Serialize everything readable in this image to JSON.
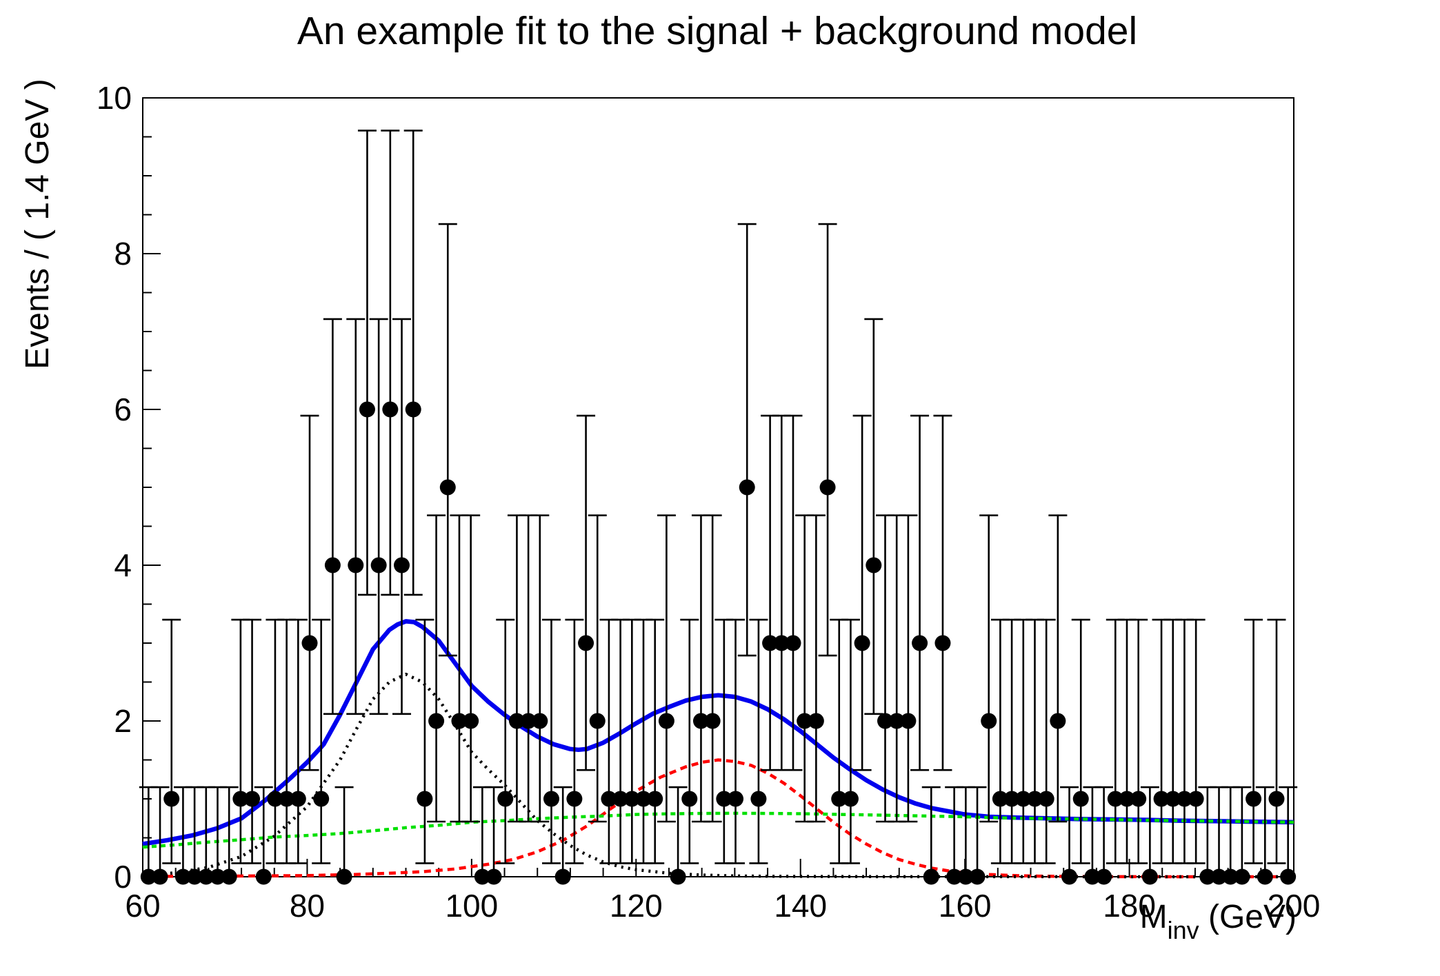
{
  "title": "An example fit to the signal + background model",
  "axes": {
    "x": {
      "title_main": "M",
      "title_sub": "inv",
      "title_rest": " (GeV)",
      "min": 60,
      "max": 200,
      "major_step": 20,
      "minor_step": 4,
      "tick_values": [
        60,
        80,
        100,
        120,
        140,
        160,
        180,
        200
      ],
      "tick_labels": [
        "60",
        "80",
        "100",
        "120",
        "140",
        "160",
        "180",
        "200"
      ]
    },
    "y": {
      "title": "Events / ( 1.4 GeV )",
      "min": 0,
      "max": 10,
      "major_step": 2,
      "minor_step": 0.5,
      "tick_values": [
        0,
        2,
        4,
        6,
        8,
        10
      ],
      "tick_labels": [
        "0",
        "2",
        "4",
        "6",
        "8",
        "10"
      ]
    }
  },
  "chart_data": {
    "type": "scatter",
    "title": "An example fit to the signal + background model",
    "xlabel": "M_inv (GeV)",
    "ylabel": "Events / ( 1.4 GeV )",
    "xlim": [
      60,
      200
    ],
    "ylim": [
      0,
      10
    ],
    "grid": false,
    "legend": "none",
    "bin_width_gev": 1.4,
    "marker_color": "#000000",
    "data_points": [
      [
        60.7,
        0
      ],
      [
        62.1,
        0
      ],
      [
        63.5,
        1
      ],
      [
        64.9,
        0
      ],
      [
        66.3,
        0
      ],
      [
        67.7,
        0
      ],
      [
        69.1,
        0
      ],
      [
        70.5,
        0
      ],
      [
        71.9,
        1
      ],
      [
        73.3,
        1
      ],
      [
        74.7,
        0
      ],
      [
        76.1,
        1
      ],
      [
        77.5,
        1
      ],
      [
        78.9,
        1
      ],
      [
        80.3,
        3
      ],
      [
        81.7,
        1
      ],
      [
        83.1,
        4
      ],
      [
        84.5,
        0
      ],
      [
        85.9,
        4
      ],
      [
        87.3,
        6
      ],
      [
        88.7,
        4
      ],
      [
        90.1,
        6
      ],
      [
        91.5,
        4
      ],
      [
        92.9,
        6
      ],
      [
        94.3,
        1
      ],
      [
        95.7,
        2
      ],
      [
        97.1,
        5
      ],
      [
        98.5,
        2
      ],
      [
        99.9,
        2
      ],
      [
        101.3,
        0
      ],
      [
        102.7,
        0
      ],
      [
        104.1,
        1
      ],
      [
        105.5,
        2
      ],
      [
        106.9,
        2
      ],
      [
        108.3,
        2
      ],
      [
        109.7,
        1
      ],
      [
        111.1,
        0
      ],
      [
        112.5,
        1
      ],
      [
        113.9,
        3
      ],
      [
        115.3,
        2
      ],
      [
        116.7,
        1
      ],
      [
        118.1,
        1
      ],
      [
        119.5,
        1
      ],
      [
        120.9,
        1
      ],
      [
        122.3,
        1
      ],
      [
        123.7,
        2
      ],
      [
        125.1,
        0
      ],
      [
        126.5,
        1
      ],
      [
        127.9,
        2
      ],
      [
        129.3,
        2
      ],
      [
        130.7,
        1
      ],
      [
        132.1,
        1
      ],
      [
        133.5,
        5
      ],
      [
        134.9,
        1
      ],
      [
        136.3,
        3
      ],
      [
        137.7,
        3
      ],
      [
        139.1,
        3
      ],
      [
        140.5,
        2
      ],
      [
        141.9,
        2
      ],
      [
        143.3,
        5
      ],
      [
        144.7,
        1
      ],
      [
        146.1,
        1
      ],
      [
        147.5,
        3
      ],
      [
        148.9,
        4
      ],
      [
        150.3,
        2
      ],
      [
        151.7,
        2
      ],
      [
        153.1,
        2
      ],
      [
        154.5,
        3
      ],
      [
        155.9,
        0
      ],
      [
        157.3,
        3
      ],
      [
        158.7,
        0
      ],
      [
        160.1,
        0
      ],
      [
        161.5,
        0
      ],
      [
        162.9,
        2
      ],
      [
        164.3,
        1
      ],
      [
        165.7,
        1
      ],
      [
        167.1,
        1
      ],
      [
        168.5,
        1
      ],
      [
        169.9,
        1
      ],
      [
        171.3,
        2
      ],
      [
        172.7,
        0
      ],
      [
        174.1,
        1
      ],
      [
        175.5,
        0
      ],
      [
        176.9,
        0
      ],
      [
        178.3,
        1
      ],
      [
        179.7,
        1
      ],
      [
        181.1,
        1
      ],
      [
        182.5,
        0
      ],
      [
        183.9,
        1
      ],
      [
        185.3,
        1
      ],
      [
        186.7,
        1
      ],
      [
        188.1,
        1
      ],
      [
        189.5,
        0
      ],
      [
        190.9,
        0
      ],
      [
        192.3,
        0
      ],
      [
        193.7,
        0
      ],
      [
        195.1,
        1
      ],
      [
        196.5,
        0
      ],
      [
        197.9,
        1
      ],
      [
        199.3,
        0
      ]
    ],
    "poisson_errors": {
      "0": [
        0,
        1.15
      ],
      "1": [
        0.173,
        3.3
      ],
      "2": [
        0.708,
        4.64
      ],
      "3": [
        1.37,
        5.92
      ],
      "4": [
        2.09,
        7.16
      ],
      "5": [
        2.84,
        8.38
      ],
      "6": [
        3.62,
        9.58
      ]
    },
    "curves": [
      {
        "name": "total-model-fit",
        "color": "#0000ee",
        "style": "solid",
        "width": 6.5,
        "dash": "",
        "points": [
          [
            60,
            0.42
          ],
          [
            63,
            0.47
          ],
          [
            66,
            0.53
          ],
          [
            69,
            0.62
          ],
          [
            72,
            0.75
          ],
          [
            75,
            0.99
          ],
          [
            78,
            1.27
          ],
          [
            80,
            1.47
          ],
          [
            82,
            1.7
          ],
          [
            84,
            2.08
          ],
          [
            86,
            2.5
          ],
          [
            88,
            2.92
          ],
          [
            90,
            3.17
          ],
          [
            91,
            3.24
          ],
          [
            92,
            3.28
          ],
          [
            93,
            3.27
          ],
          [
            94,
            3.21
          ],
          [
            96,
            3.03
          ],
          [
            98,
            2.74
          ],
          [
            100,
            2.45
          ],
          [
            102,
            2.25
          ],
          [
            104,
            2.08
          ],
          [
            106,
            1.93
          ],
          [
            108,
            1.8
          ],
          [
            110,
            1.7
          ],
          [
            112,
            1.64
          ],
          [
            113,
            1.63
          ],
          [
            114,
            1.64
          ],
          [
            116,
            1.72
          ],
          [
            118,
            1.84
          ],
          [
            120,
            1.97
          ],
          [
            122,
            2.09
          ],
          [
            124,
            2.18
          ],
          [
            126,
            2.26
          ],
          [
            128,
            2.31
          ],
          [
            130,
            2.33
          ],
          [
            132,
            2.31
          ],
          [
            134,
            2.25
          ],
          [
            136,
            2.15
          ],
          [
            138,
            2.02
          ],
          [
            140,
            1.87
          ],
          [
            142,
            1.7
          ],
          [
            144,
            1.53
          ],
          [
            146,
            1.38
          ],
          [
            148,
            1.24
          ],
          [
            150,
            1.12
          ],
          [
            152,
            1.02
          ],
          [
            154,
            0.94
          ],
          [
            156,
            0.88
          ],
          [
            158,
            0.84
          ],
          [
            160,
            0.8
          ],
          [
            163,
            0.77
          ],
          [
            166,
            0.76
          ],
          [
            170,
            0.75
          ],
          [
            174,
            0.74
          ],
          [
            178,
            0.735
          ],
          [
            182,
            0.73
          ],
          [
            186,
            0.72
          ],
          [
            190,
            0.715
          ],
          [
            195,
            0.707
          ],
          [
            200,
            0.7
          ]
        ]
      },
      {
        "name": "signal2-peak-130GeV",
        "color": "#ff0000",
        "style": "dashed",
        "width": 4.5,
        "dash": "10 7",
        "points": [
          [
            60,
            0.004
          ],
          [
            70,
            0.008
          ],
          [
            80,
            0.015
          ],
          [
            86,
            0.03
          ],
          [
            90,
            0.045
          ],
          [
            94,
            0.065
          ],
          [
            98,
            0.1
          ],
          [
            102,
            0.16
          ],
          [
            105,
            0.22
          ],
          [
            108,
            0.32
          ],
          [
            111,
            0.46
          ],
          [
            114,
            0.65
          ],
          [
            117,
            0.88
          ],
          [
            120,
            1.1
          ],
          [
            123,
            1.28
          ],
          [
            126,
            1.41
          ],
          [
            128,
            1.47
          ],
          [
            130,
            1.5
          ],
          [
            132,
            1.48
          ],
          [
            134,
            1.43
          ],
          [
            136,
            1.33
          ],
          [
            138,
            1.2
          ],
          [
            140,
            1.04
          ],
          [
            142,
            0.87
          ],
          [
            144,
            0.7
          ],
          [
            146,
            0.55
          ],
          [
            148,
            0.42
          ],
          [
            150,
            0.31
          ],
          [
            152,
            0.22
          ],
          [
            154,
            0.16
          ],
          [
            156,
            0.11
          ],
          [
            158,
            0.075
          ],
          [
            160,
            0.05
          ],
          [
            163,
            0.028
          ],
          [
            166,
            0.015
          ],
          [
            169,
            0.008
          ],
          [
            172,
            0.004
          ],
          [
            176,
            0.002
          ],
          [
            180,
            0.001
          ],
          [
            190,
            0.0
          ],
          [
            200,
            0.0
          ]
        ]
      },
      {
        "name": "signal1-peak-91GeV",
        "color": "#000000",
        "style": "dotted",
        "width": 4.5,
        "dash": "3 7",
        "points": [
          [
            60,
            0.02
          ],
          [
            64,
            0.05
          ],
          [
            68,
            0.12
          ],
          [
            72,
            0.26
          ],
          [
            76,
            0.52
          ],
          [
            80,
            0.9
          ],
          [
            84,
            1.5
          ],
          [
            86,
            1.9
          ],
          [
            88,
            2.28
          ],
          [
            90,
            2.5
          ],
          [
            92,
            2.6
          ],
          [
            94,
            2.5
          ],
          [
            96,
            2.28
          ],
          [
            98,
            1.95
          ],
          [
            100,
            1.6
          ],
          [
            102,
            1.38
          ],
          [
            104,
            1.18
          ],
          [
            106,
            0.95
          ],
          [
            108,
            0.72
          ],
          [
            110,
            0.55
          ],
          [
            112,
            0.4
          ],
          [
            114,
            0.28
          ],
          [
            116,
            0.19
          ],
          [
            118,
            0.13
          ],
          [
            120,
            0.09
          ],
          [
            124,
            0.045
          ],
          [
            128,
            0.022
          ],
          [
            132,
            0.011
          ],
          [
            136,
            0.006
          ],
          [
            140,
            0.004
          ],
          [
            148,
            0.002
          ],
          [
            156,
            0.001
          ],
          [
            168,
            0.001
          ],
          [
            180,
            0.0
          ],
          [
            200,
            0.0
          ]
        ]
      },
      {
        "name": "background",
        "color": "#00e000",
        "style": "dotted",
        "width": 4.5,
        "dash": "7 6",
        "points": [
          [
            60,
            0.38
          ],
          [
            64,
            0.41
          ],
          [
            68,
            0.445
          ],
          [
            72,
            0.475
          ],
          [
            76,
            0.51
          ],
          [
            80,
            0.53
          ],
          [
            84,
            0.555
          ],
          [
            88,
            0.59
          ],
          [
            92,
            0.63
          ],
          [
            96,
            0.66
          ],
          [
            100,
            0.7
          ],
          [
            104,
            0.72
          ],
          [
            108,
            0.745
          ],
          [
            112,
            0.765
          ],
          [
            116,
            0.78
          ],
          [
            120,
            0.8
          ],
          [
            124,
            0.808
          ],
          [
            128,
            0.813
          ],
          [
            132,
            0.815
          ],
          [
            136,
            0.813
          ],
          [
            140,
            0.81
          ],
          [
            144,
            0.802
          ],
          [
            148,
            0.795
          ],
          [
            152,
            0.787
          ],
          [
            156,
            0.778
          ],
          [
            160,
            0.77
          ],
          [
            164,
            0.757
          ],
          [
            168,
            0.75
          ],
          [
            172,
            0.743
          ],
          [
            176,
            0.737
          ],
          [
            180,
            0.73
          ],
          [
            184,
            0.722
          ],
          [
            188,
            0.718
          ],
          [
            192,
            0.712
          ],
          [
            196,
            0.705
          ],
          [
            200,
            0.7
          ]
        ]
      }
    ]
  },
  "frame": {
    "stroke_color": "#000000",
    "background": "#ffffff"
  }
}
